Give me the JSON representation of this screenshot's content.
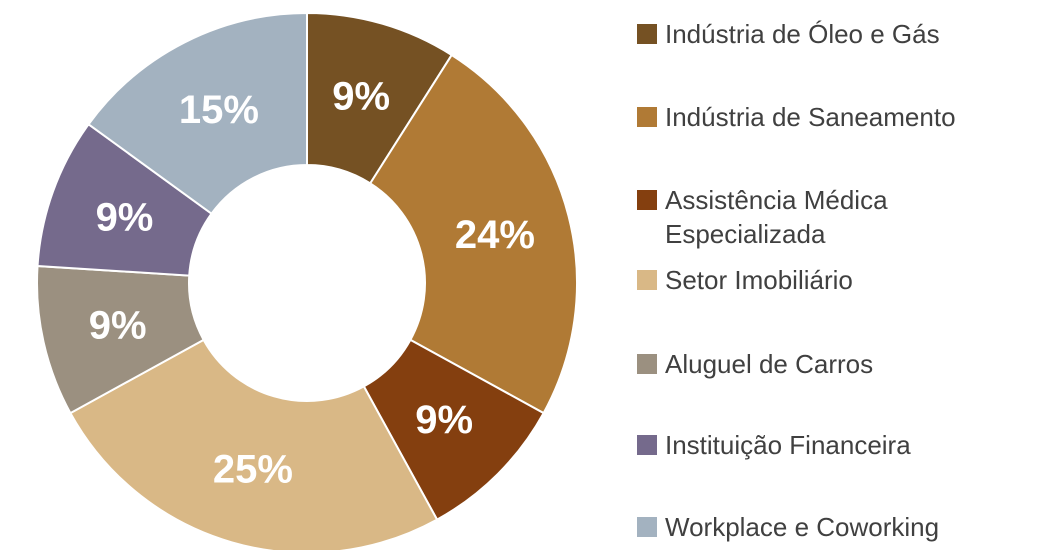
{
  "chart_data": {
    "type": "donut",
    "categories": [
      "Indústria de Óleo e Gás",
      "Indústria de Saneamento",
      "Assistência Médica Especializada",
      "Setor Imobiliário",
      "Aluguel de Carros",
      "Instituição Financeira",
      "Workplace e Coworking"
    ],
    "values": [
      9,
      24,
      9,
      25,
      9,
      9,
      15
    ],
    "value_labels": [
      "9%",
      "24%",
      "9%",
      "25%",
      "9%",
      "9%",
      "15%"
    ],
    "colors": [
      "#755123",
      "#b07a35",
      "#843f0f",
      "#d9b886",
      "#9b9080",
      "#756a8c",
      "#a3b2c0"
    ],
    "legend": "right"
  }
}
